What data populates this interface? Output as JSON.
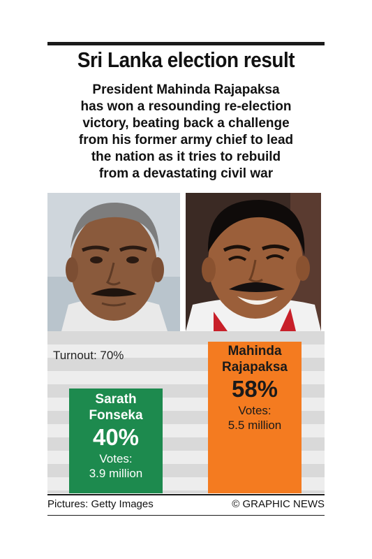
{
  "title": "Sri Lanka election result",
  "standfirst": [
    "President Mahinda Rajapaksa",
    "has won a resounding re-election",
    "victory, beating back a challenge",
    "from his former army chief to lead",
    "the nation as it tries to rebuild",
    "from a devastating civil war"
  ],
  "photos": {
    "left_subject": "Sarath Fonseka",
    "right_subject": "Mahinda Rajapaksa"
  },
  "turnout_label": "Turnout: 70%",
  "chart_data": {
    "type": "bar",
    "title": "Sri Lanka election result",
    "categories": [
      "Sarath Fonseka",
      "Mahinda Rajapaksa"
    ],
    "values": [
      40,
      58
    ],
    "unit": "%",
    "ylim": [
      0,
      62
    ],
    "bars": [
      {
        "name_lines": [
          "Sarath",
          "Fonseka"
        ],
        "pct_label": "40%",
        "votes_label": "Votes:",
        "votes_value": "3.9 million",
        "value": 40,
        "color": "#1d8a4e"
      },
      {
        "name_lines": [
          "Mahinda",
          "Rajapaksa"
        ],
        "pct_label": "58%",
        "votes_label": "Votes:",
        "votes_value": "5.5 million",
        "value": 58,
        "color": "#f47b20"
      }
    ],
    "background_bands": [
      "#d9d9d9",
      "#ededed"
    ]
  },
  "credits": {
    "pictures": "Pictures: Getty Images",
    "source": "© GRAPHIC NEWS"
  }
}
